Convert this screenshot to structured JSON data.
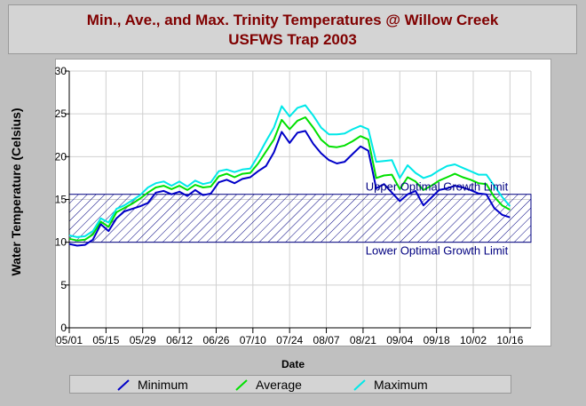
{
  "title": {
    "line1": "Min., Ave., and Max. Trinity Temperatures @ Willow Creek",
    "line2": "USFWS Trap 2003"
  },
  "colors": {
    "title": "#800000",
    "minimum": "#0000c8",
    "average": "#00e000",
    "maximum": "#00e8e8",
    "band": "#000080",
    "grid": "#d0d0d0"
  },
  "chart_data": {
    "type": "line",
    "title": "Min., Ave., and Max. Trinity Temperatures @ Willow Creek USFWS Trap 2003",
    "xlabel": "Date",
    "ylabel": "Water Temperature (Celsius)",
    "xlim": [
      "2003-05-01",
      "2003-10-24"
    ],
    "ylim": [
      0,
      30
    ],
    "yticks": [
      0,
      5,
      10,
      15,
      20,
      25,
      30
    ],
    "xtick_labels": [
      "05/01",
      "05/15",
      "05/29",
      "06/12",
      "06/26",
      "07/10",
      "07/24",
      "08/07",
      "08/21",
      "09/04",
      "09/18",
      "10/02",
      "10/16"
    ],
    "grid": true,
    "legend_position": "bottom",
    "optimal_band": {
      "lower": 10,
      "upper": 15.6,
      "lower_label": "Lower Optimal Growth Limit",
      "upper_label": "Upper Optimal Growth Limit"
    },
    "x": [
      "05/01",
      "05/04",
      "05/07",
      "05/10",
      "05/13",
      "05/16",
      "05/19",
      "05/22",
      "05/25",
      "05/28",
      "05/31",
      "06/03",
      "06/06",
      "06/09",
      "06/12",
      "06/15",
      "06/18",
      "06/21",
      "06/24",
      "06/27",
      "06/30",
      "07/03",
      "07/06",
      "07/09",
      "07/12",
      "07/15",
      "07/18",
      "07/21",
      "07/24",
      "07/27",
      "07/30",
      "08/02",
      "08/05",
      "08/08",
      "08/11",
      "08/14",
      "08/17",
      "08/20",
      "08/23",
      "08/26",
      "08/29",
      "09/01",
      "09/04",
      "09/07",
      "09/10",
      "09/13",
      "09/16",
      "09/19",
      "09/22",
      "09/25",
      "09/28",
      "10/01",
      "10/04",
      "10/07",
      "10/10",
      "10/13",
      "10/16"
    ],
    "series": [
      {
        "name": "Minimum",
        "values": [
          9.8,
          9.6,
          9.7,
          10.3,
          12.1,
          11.3,
          12.8,
          13.6,
          13.9,
          14.2,
          14.6,
          15.8,
          16.0,
          15.6,
          15.9,
          15.4,
          16.1,
          15.5,
          15.7,
          17.0,
          17.3,
          16.9,
          17.4,
          17.6,
          18.3,
          18.9,
          20.5,
          22.9,
          21.6,
          22.8,
          23.0,
          21.5,
          20.4,
          19.6,
          19.2,
          19.4,
          20.3,
          21.2,
          20.7,
          16.3,
          16.8,
          15.8,
          14.8,
          15.6,
          16.0,
          14.3,
          15.2,
          16.1,
          16.3,
          16.6,
          16.4,
          16.1,
          15.7,
          15.6,
          14.0,
          13.2,
          12.9
        ]
      },
      {
        "name": "Average",
        "values": [
          10.4,
          10.2,
          10.3,
          10.9,
          12.4,
          11.8,
          13.5,
          14.0,
          14.5,
          15.1,
          15.8,
          16.4,
          16.6,
          16.2,
          16.6,
          16.1,
          16.7,
          16.4,
          16.5,
          17.7,
          18.0,
          17.6,
          18.0,
          18.1,
          19.2,
          20.6,
          22.0,
          24.3,
          23.2,
          24.2,
          24.6,
          23.4,
          22.0,
          21.2,
          21.1,
          21.3,
          21.8,
          22.4,
          22.0,
          17.5,
          17.8,
          17.9,
          16.2,
          17.6,
          17.1,
          16.1,
          16.6,
          17.2,
          17.6,
          18.0,
          17.6,
          17.3,
          16.9,
          16.8,
          15.3,
          14.3,
          13.8
        ]
      },
      {
        "name": "Maximum",
        "values": [
          10.8,
          10.6,
          10.7,
          11.3,
          12.8,
          12.3,
          13.9,
          14.3,
          14.9,
          15.5,
          16.4,
          16.9,
          17.1,
          16.6,
          17.1,
          16.5,
          17.2,
          16.8,
          17.0,
          18.3,
          18.5,
          18.2,
          18.5,
          18.6,
          20.1,
          21.8,
          23.4,
          25.9,
          24.7,
          25.7,
          26.0,
          24.8,
          23.4,
          22.6,
          22.6,
          22.7,
          23.2,
          23.6,
          23.2,
          19.4,
          19.5,
          19.6,
          17.5,
          19.0,
          18.1,
          17.5,
          17.8,
          18.4,
          18.9,
          19.1,
          18.7,
          18.3,
          17.9,
          17.9,
          16.6,
          15.3,
          14.2
        ]
      }
    ]
  }
}
